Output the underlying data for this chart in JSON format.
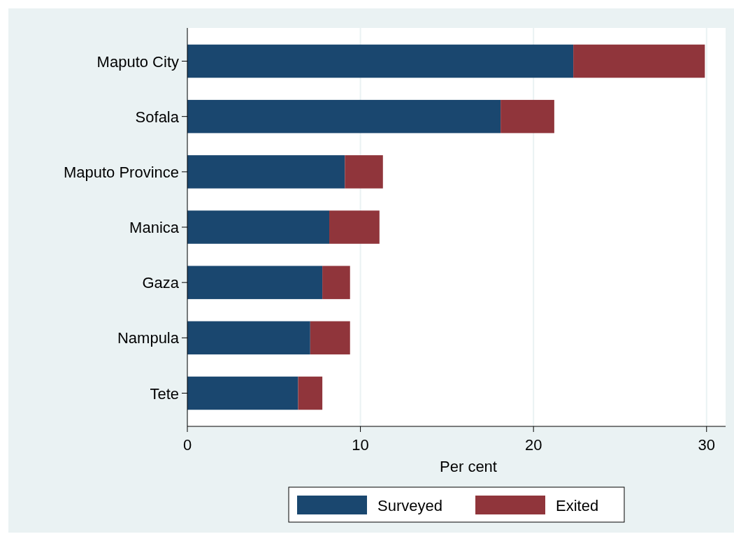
{
  "chart_data": {
    "type": "bar",
    "orientation": "horizontal",
    "stacked": true,
    "xlabel": "Per cent",
    "categories": [
      "Maputo City",
      "Sofala",
      "Maputo Province",
      "Manica",
      "Gaza",
      "Nampula",
      "Tete"
    ],
    "series": [
      {
        "name": "Surveyed",
        "color": "#1a476f",
        "values": [
          22.3,
          18.1,
          9.1,
          8.2,
          7.8,
          7.1,
          6.4
        ]
      },
      {
        "name": "Exited",
        "color": "#90353b",
        "values": [
          7.6,
          3.1,
          2.2,
          2.9,
          1.6,
          2.3,
          1.4
        ]
      }
    ],
    "xlim": [
      0,
      31.1
    ],
    "xticks": [
      0,
      10,
      20,
      30
    ],
    "grid": "x",
    "legend": "bottom"
  }
}
